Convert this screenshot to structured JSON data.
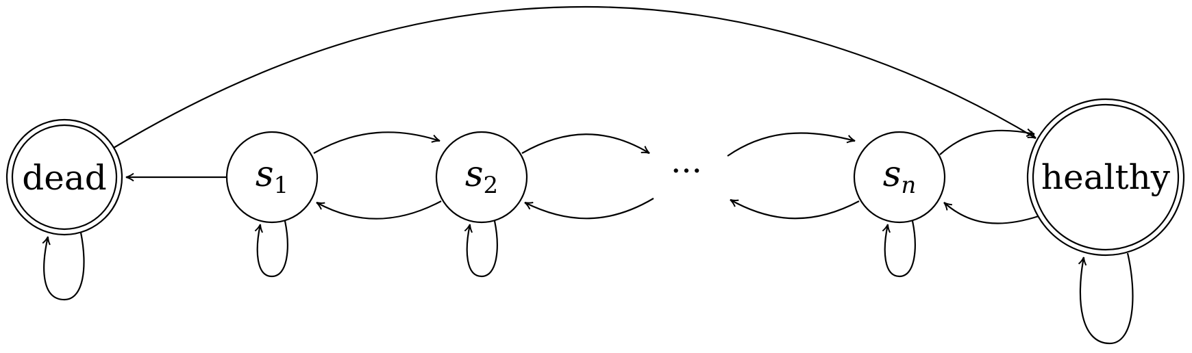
{
  "nodes": {
    "dead": {
      "label": "dead",
      "accepting": true
    },
    "s1": {
      "base": "s",
      "sub": "1",
      "accepting": false
    },
    "s2": {
      "base": "s",
      "sub": "2",
      "accepting": false
    },
    "ellipsis": {
      "label": "···"
    },
    "sn": {
      "base": "s",
      "sub": "n",
      "accepting": false
    },
    "healthy": {
      "label": "healthy",
      "accepting": true
    }
  },
  "edges": [
    {
      "from": "dead",
      "to": "dead",
      "kind": "self-loop"
    },
    {
      "from": "dead",
      "to": "healthy",
      "kind": "arc"
    },
    {
      "from": "s1",
      "to": "dead"
    },
    {
      "from": "s1",
      "to": "s1",
      "kind": "self-loop"
    },
    {
      "from": "s1",
      "to": "s2"
    },
    {
      "from": "s2",
      "to": "s1"
    },
    {
      "from": "s2",
      "to": "s2",
      "kind": "self-loop"
    },
    {
      "from": "s2",
      "to": "ellipsis"
    },
    {
      "from": "ellipsis",
      "to": "s2"
    },
    {
      "from": "ellipsis",
      "to": "sn"
    },
    {
      "from": "sn",
      "to": "ellipsis"
    },
    {
      "from": "sn",
      "to": "sn",
      "kind": "self-loop"
    },
    {
      "from": "sn",
      "to": "healthy"
    },
    {
      "from": "healthy",
      "to": "sn"
    },
    {
      "from": "healthy",
      "to": "healthy",
      "kind": "self-loop"
    }
  ]
}
